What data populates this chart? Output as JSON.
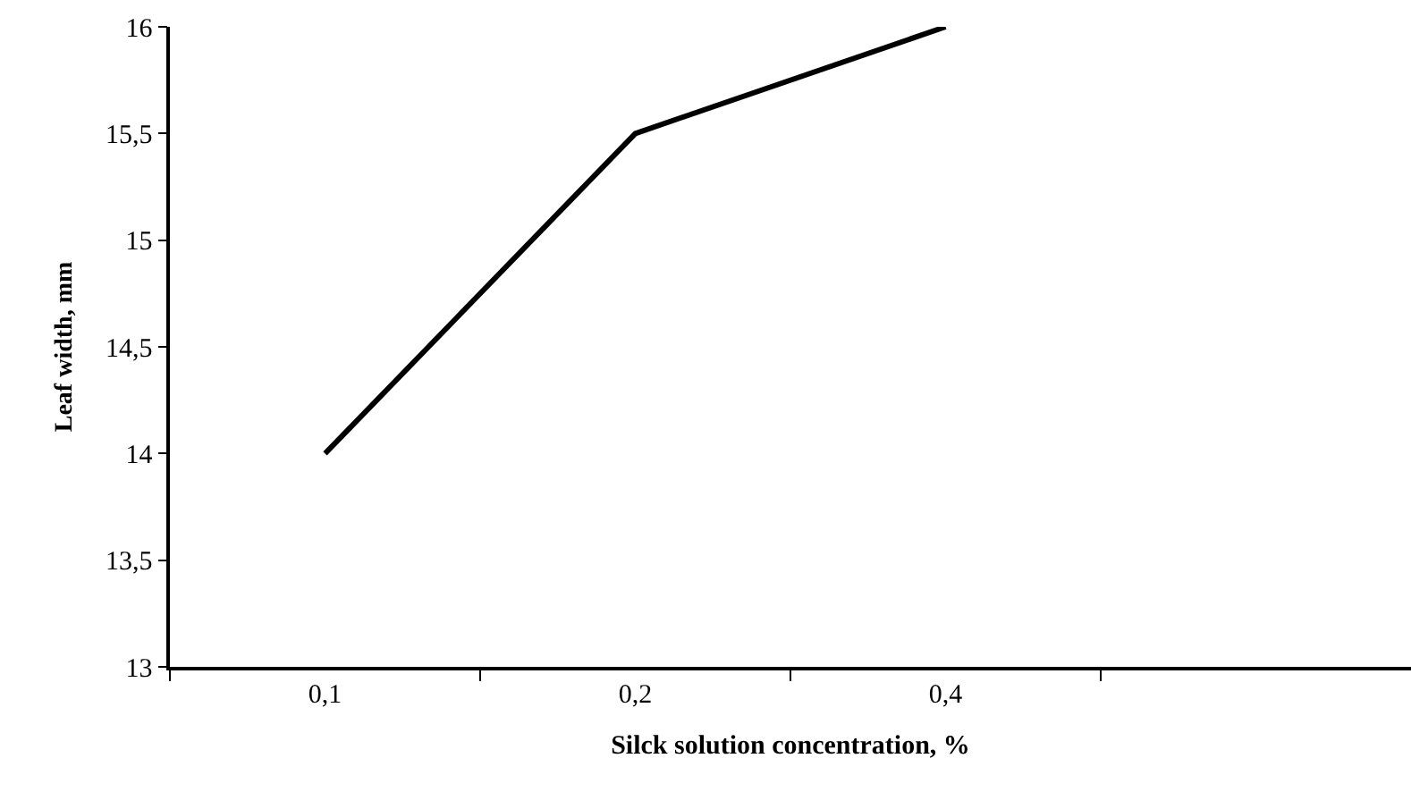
{
  "chart_data": {
    "type": "line",
    "xlabel": "Silck solution concentration, %",
    "ylabel": "Leaf width, mm",
    "categories": [
      "0,1",
      "0,2",
      "0,4",
      null
    ],
    "series": [
      {
        "color": "#000000",
        "values": [
          14,
          15.5,
          16,
          null
        ]
      }
    ],
    "ylim": [
      13,
      16
    ],
    "yticks": [
      13,
      {
        "value": 13.5,
        "label": "13,5"
      },
      14,
      {
        "value": 14.5,
        "label": "14,5"
      },
      15,
      {
        "value": 15.5,
        "label": "15,5"
      },
      16
    ],
    "marker": "none",
    "line_style": "solid"
  }
}
